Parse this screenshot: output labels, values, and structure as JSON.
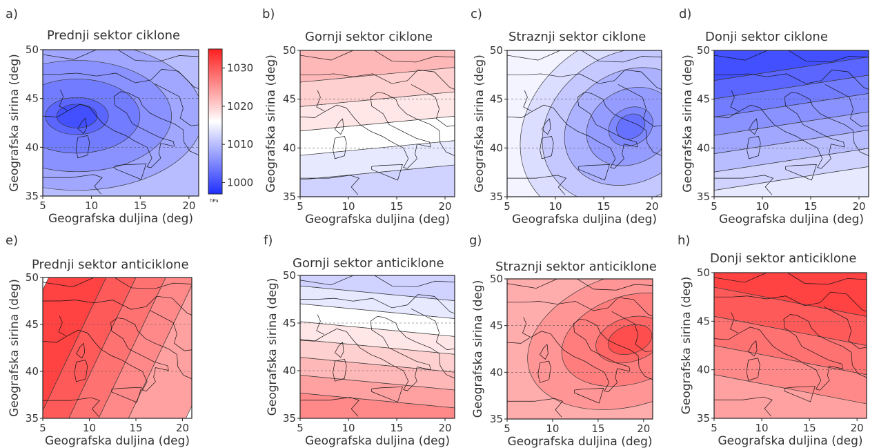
{
  "figure": {
    "xlabel": "Geografska duljina (deg)",
    "ylabel": "Geografska sirina (deg)",
    "colorbar": {
      "label": "hPa",
      "ticks": [
        1000,
        1010,
        1020,
        1030
      ],
      "range": [
        997,
        1035
      ],
      "colors": {
        "low": "#1f2fff",
        "mid": "#ffffff",
        "high": "#ff1f1f",
        "mid_value": 1016
      }
    }
  },
  "chart_data": [
    {
      "type": "heatmap",
      "panel": "a)",
      "title": "Prednji sektor ciklone",
      "xticks": [
        5,
        10,
        15,
        20
      ],
      "yticks": [
        35,
        40,
        45,
        50
      ],
      "xlim": [
        5,
        21
      ],
      "ylim": [
        35,
        50
      ],
      "field": {
        "center": [
          8.5,
          43.2
        ],
        "center_value": 1000,
        "rings": [
          1002,
          1004,
          1006,
          1008,
          1010
        ],
        "sx": 1.7,
        "sy": 1.0,
        "tilt": 0
      }
    },
    {
      "type": "heatmap",
      "panel": "b)",
      "title": "Gornji sektor ciklone",
      "xticks": [
        5,
        10,
        15,
        20
      ],
      "yticks": [
        35,
        40,
        45,
        50
      ],
      "xlim": [
        5,
        21
      ],
      "ylim": [
        35,
        50
      ],
      "field": {
        "bands_bottom_to_top": [
          1012,
          1014,
          1016,
          1018,
          1020,
          1022
        ],
        "tilt": 0.05
      }
    },
    {
      "type": "heatmap",
      "panel": "c)",
      "title": "Straznji sektor ciklone",
      "xticks": [
        5,
        10,
        15,
        20
      ],
      "yticks": [
        35,
        40,
        45,
        50
      ],
      "xlim": [
        5,
        21
      ],
      "ylim": [
        35,
        50
      ],
      "field": {
        "center": [
          17.8,
          42.2
        ],
        "center_value": 1003,
        "rings": [
          1005,
          1007,
          1009,
          1011,
          1013,
          1015
        ],
        "sx": 1.5,
        "sy": 1.2,
        "tilt": -0.5
      }
    },
    {
      "type": "heatmap",
      "panel": "d)",
      "title": "Donji sektor ciklone",
      "xticks": [
        5,
        10,
        15,
        20
      ],
      "yticks": [
        35,
        40,
        45,
        50
      ],
      "xlim": [
        5,
        21
      ],
      "ylim": [
        35,
        50
      ],
      "field": {
        "bands_bottom_to_top": [
          1014,
          1012,
          1010,
          1008,
          1006,
          1004,
          1002,
          1000
        ],
        "tilt": 0.08
      }
    },
    {
      "type": "heatmap",
      "panel": "e)",
      "title": "Prednji sektor anticiklone",
      "xticks": [
        5,
        10,
        15,
        20
      ],
      "yticks": [
        35,
        40,
        45,
        50
      ],
      "xlim": [
        5,
        21
      ],
      "ylim": [
        35,
        50
      ],
      "field": {
        "bands_left_to_right": [
          1032,
          1030,
          1028,
          1026,
          1024
        ],
        "tilt": 0.25
      }
    },
    {
      "type": "heatmap",
      "panel": "f)",
      "title": "Gornji sektor anticiklone",
      "xticks": [
        5,
        10,
        15,
        20
      ],
      "yticks": [
        35,
        40,
        45,
        50
      ],
      "xlim": [
        5,
        21
      ],
      "ylim": [
        35,
        50
      ],
      "field": {
        "bands_bottom_to_top": [
          1026,
          1024,
          1022,
          1020,
          1018,
          1016,
          1014,
          1012
        ],
        "tilt": -0.05
      }
    },
    {
      "type": "heatmap",
      "panel": "g)",
      "title": "Straznji sektor anticiklone",
      "xticks": [
        5,
        10,
        15,
        20
      ],
      "yticks": [
        35,
        40,
        45,
        50
      ],
      "xlim": [
        5,
        21
      ],
      "ylim": [
        35,
        50
      ],
      "field": {
        "center": [
          18.5,
          43.5
        ],
        "center_value": 1031,
        "rings": [
          1029,
          1027,
          1025,
          1023
        ],
        "sx": 1.6,
        "sy": 1.0,
        "tilt": -0.3
      }
    },
    {
      "type": "heatmap",
      "panel": "h)",
      "title": "Donji sektor anticiklone",
      "xticks": [
        5,
        10,
        15,
        20
      ],
      "yticks": [
        35,
        40,
        45,
        50
      ],
      "xlim": [
        5,
        21
      ],
      "ylim": [
        35,
        50
      ],
      "field": {
        "bands_bottom_to_top": [
          1024,
          1026,
          1028,
          1030,
          1032
        ],
        "tilt": -0.1
      }
    }
  ]
}
